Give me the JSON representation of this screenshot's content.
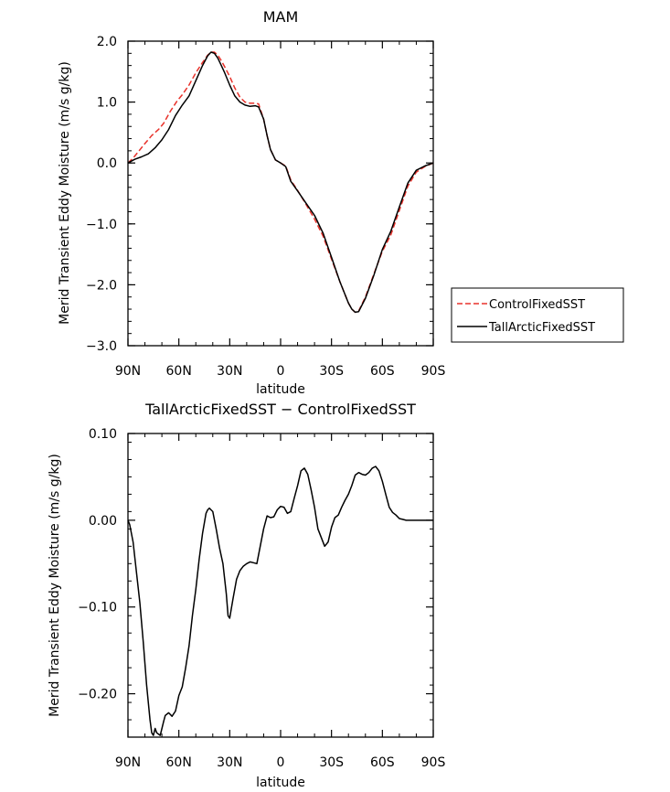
{
  "chart_data": [
    {
      "type": "line",
      "title": "MAM",
      "xlabel": "latitude",
      "ylabel": "Merid Transient Eddy Moisture (m/s g/kg)",
      "xlim": [
        -90,
        90
      ],
      "ylim": [
        -3.0,
        2.0
      ],
      "xticks": [
        -90,
        -60,
        -30,
        0,
        30,
        60,
        90
      ],
      "xtick_labels": [
        "90N",
        "60N",
        "30N",
        "0",
        "30S",
        "60S",
        "90S"
      ],
      "yticks": [
        2.0,
        1.0,
        0.0,
        -1.0,
        -2.0,
        -3.0
      ],
      "ytick_labels": [
        "2.0",
        "1.0",
        "0.0",
        "−1.0",
        "−2.0",
        "−3.0"
      ],
      "legend_position": "right",
      "series": [
        {
          "name": "ControlFixedSST",
          "color": "#e8322b",
          "dash": "dashed",
          "x": [
            -90,
            -87,
            -84,
            -80,
            -76,
            -72,
            -69,
            -65,
            -61,
            -58,
            -54,
            -50,
            -46,
            -43,
            -41,
            -39,
            -37,
            -35,
            -33,
            -30,
            -27,
            -24,
            -21,
            -18,
            -15,
            -13,
            -10,
            -8,
            -6,
            -3,
            0,
            3,
            6,
            10,
            15,
            20,
            25,
            30,
            35,
            40,
            42,
            44,
            46,
            50,
            55,
            60,
            65,
            70,
            75,
            80,
            85,
            90
          ],
          "y": [
            0.0,
            0.08,
            0.18,
            0.32,
            0.45,
            0.55,
            0.65,
            0.85,
            1.02,
            1.12,
            1.28,
            1.48,
            1.65,
            1.77,
            1.82,
            1.82,
            1.77,
            1.68,
            1.58,
            1.42,
            1.23,
            1.08,
            1.0,
            0.98,
            0.98,
            0.97,
            0.72,
            0.45,
            0.22,
            0.05,
            0.0,
            -0.05,
            -0.28,
            -0.45,
            -0.68,
            -0.92,
            -1.2,
            -1.58,
            -1.95,
            -2.3,
            -2.4,
            -2.45,
            -2.43,
            -2.2,
            -1.82,
            -1.45,
            -1.18,
            -0.78,
            -0.38,
            -0.15,
            -0.06,
            0.0
          ]
        },
        {
          "name": "TallArcticFixedSST",
          "color": "#000000",
          "dash": "solid",
          "x": [
            -90,
            -86,
            -82,
            -78,
            -74,
            -70,
            -66,
            -62,
            -58,
            -54,
            -50,
            -46,
            -43,
            -41,
            -39,
            -37,
            -35,
            -33,
            -30,
            -27,
            -24,
            -21,
            -18,
            -15,
            -13,
            -10,
            -8,
            -6,
            -3,
            0,
            3,
            6,
            10,
            15,
            20,
            25,
            30,
            35,
            40,
            42,
            44,
            46,
            50,
            55,
            60,
            65,
            70,
            75,
            80,
            85,
            90
          ],
          "y": [
            0.0,
            0.06,
            0.1,
            0.15,
            0.25,
            0.38,
            0.55,
            0.78,
            0.95,
            1.1,
            1.35,
            1.6,
            1.76,
            1.82,
            1.8,
            1.72,
            1.6,
            1.48,
            1.28,
            1.1,
            1.0,
            0.95,
            0.93,
            0.94,
            0.92,
            0.72,
            0.45,
            0.22,
            0.05,
            0.0,
            -0.06,
            -0.3,
            -0.46,
            -0.66,
            -0.86,
            -1.15,
            -1.55,
            -1.95,
            -2.3,
            -2.4,
            -2.45,
            -2.44,
            -2.22,
            -1.84,
            -1.42,
            -1.12,
            -0.72,
            -0.33,
            -0.12,
            -0.05,
            0.0
          ]
        }
      ]
    },
    {
      "type": "line",
      "title": "TallArcticFixedSST − ControlFixedSST",
      "xlabel": "latitude",
      "ylabel": "Merid Transient Eddy Moisture (m/s g/kg)",
      "xlim": [
        -90,
        90
      ],
      "ylim": [
        -0.25,
        0.1
      ],
      "xticks": [
        -90,
        -60,
        -30,
        0,
        30,
        60,
        90
      ],
      "xtick_labels": [
        "90N",
        "60N",
        "30N",
        "0",
        "30S",
        "60S",
        "90S"
      ],
      "yticks": [
        0.1,
        0.0,
        -0.1,
        -0.2
      ],
      "ytick_labels": [
        "0.10",
        "0.00",
        "−0.10",
        "−0.20"
      ],
      "series": [
        {
          "name": "TallArcticFixedSST − ControlFixedSST",
          "color": "#000000",
          "dash": "solid",
          "x": [
            -90,
            -89,
            -87,
            -85,
            -83,
            -81,
            -79,
            -77,
            -76,
            -75,
            -74,
            -73,
            -71,
            -69,
            -68,
            -66,
            -64,
            -62,
            -60,
            -58,
            -56,
            -54,
            -52,
            -50,
            -48,
            -46,
            -44,
            -43,
            -42,
            -41,
            -40,
            -38,
            -36,
            -34,
            -32,
            -31,
            -30,
            -28,
            -26,
            -24,
            -22,
            -20,
            -18,
            -16,
            -14,
            -12,
            -10,
            -8,
            -6,
            -4,
            -2,
            0,
            2,
            4,
            6,
            8,
            10,
            12,
            14,
            16,
            18,
            20,
            22,
            24,
            26,
            28,
            30,
            32,
            34,
            36,
            38,
            40,
            42,
            44,
            46,
            48,
            50,
            52,
            54,
            56,
            58,
            60,
            62,
            64,
            66,
            68,
            70,
            72,
            74,
            76,
            78,
            80,
            82,
            84,
            86,
            88,
            90
          ],
          "y": [
            0.0,
            -0.005,
            -0.025,
            -0.06,
            -0.095,
            -0.14,
            -0.19,
            -0.23,
            -0.245,
            -0.248,
            -0.24,
            -0.245,
            -0.248,
            -0.232,
            -0.225,
            -0.222,
            -0.226,
            -0.22,
            -0.202,
            -0.192,
            -0.17,
            -0.145,
            -0.11,
            -0.08,
            -0.045,
            -0.015,
            0.008,
            0.012,
            0.014,
            0.012,
            0.01,
            -0.01,
            -0.032,
            -0.05,
            -0.085,
            -0.11,
            -0.113,
            -0.09,
            -0.068,
            -0.058,
            -0.053,
            -0.05,
            -0.048,
            -0.049,
            -0.05,
            -0.03,
            -0.01,
            0.005,
            0.003,
            0.004,
            0.012,
            0.016,
            0.015,
            0.008,
            0.01,
            0.025,
            0.04,
            0.057,
            0.06,
            0.053,
            0.035,
            0.015,
            -0.01,
            -0.02,
            -0.03,
            -0.025,
            -0.008,
            0.003,
            0.006,
            0.015,
            0.023,
            0.03,
            0.04,
            0.052,
            0.055,
            0.053,
            0.052,
            0.055,
            0.06,
            0.062,
            0.057,
            0.045,
            0.03,
            0.015,
            0.009,
            0.006,
            0.002,
            0.001,
            0.0,
            0.0,
            0.0,
            0.0,
            0.0,
            0.0,
            0.0,
            0.0,
            0.0
          ]
        }
      ]
    }
  ]
}
